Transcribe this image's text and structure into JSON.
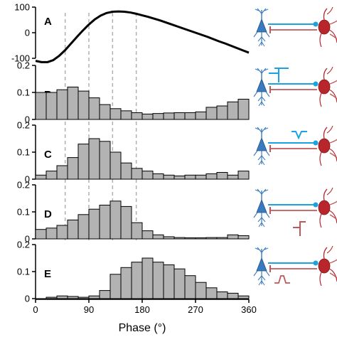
{
  "colors": {
    "bar_fill": "#b3b3b3",
    "bar_stroke": "#000000",
    "line": "#000000",
    "guide": "#b0b0b0",
    "pyramidal_cell": "#3a7abf",
    "interneuron": "#b8262b",
    "excitatory_projection": "#1aa3e0",
    "inhibitory_projection": "#c0575a"
  },
  "icons": [
    "pyramidal-neuron-icon",
    "interneuron-icon",
    "excitatory-synapse-icon",
    "inhibitory-synapse-icon",
    "current-step-icon"
  ],
  "xaxis": {
    "label": "Phase (°)",
    "ticks": [
      0,
      90,
      180,
      270,
      360
    ],
    "tick_labels": [
      "0",
      "90",
      "180",
      "270",
      "360"
    ],
    "range": [
      0,
      360
    ]
  },
  "guide_lines": [
    50,
    90,
    130,
    170
  ],
  "chart_data": [
    {
      "type": "line",
      "panel": "A",
      "ylim": [
        -100,
        100
      ],
      "yticks": [
        -100,
        0,
        100
      ],
      "ytick_labels": [
        "-100",
        "0",
        "100"
      ],
      "x": [
        0,
        10,
        20,
        30,
        40,
        50,
        60,
        70,
        80,
        90,
        100,
        110,
        120,
        130,
        140,
        150,
        160,
        170,
        180,
        190,
        200,
        210,
        220,
        230,
        240,
        250,
        260,
        270,
        280,
        290,
        300,
        310,
        320,
        330,
        340,
        350,
        360
      ],
      "y": [
        -110,
        -115,
        -115,
        -107,
        -90,
        -68,
        -42,
        -16,
        9,
        32,
        52,
        67,
        77,
        82,
        83,
        82,
        79,
        74,
        68,
        62,
        55,
        48,
        40,
        32,
        24,
        16,
        8,
        0,
        -8,
        -16,
        -25,
        -34,
        -42,
        -51,
        -60,
        -69,
        -78
      ]
    },
    {
      "type": "bar",
      "panel": "B",
      "ylim": [
        0,
        0.2
      ],
      "yticks": [
        0,
        0.1,
        0.2
      ],
      "ytick_labels": [
        "0",
        "0.1",
        "0.2"
      ],
      "bin_width": 18,
      "bin_starts": [
        0,
        18,
        36,
        54,
        72,
        90,
        108,
        126,
        144,
        162,
        180,
        198,
        216,
        234,
        252,
        270,
        288,
        306,
        324,
        342
      ],
      "values": [
        0.1,
        0.1,
        0.11,
        0.12,
        0.105,
        0.08,
        0.055,
        0.04,
        0.032,
        0.025,
        0.02,
        0.022,
        0.024,
        0.025,
        0.025,
        0.028,
        0.045,
        0.05,
        0.065,
        0.075
      ]
    },
    {
      "type": "bar",
      "panel": "C",
      "ylim": [
        0,
        0.2
      ],
      "yticks": [
        0,
        0.1,
        0.2
      ],
      "ytick_labels": [
        "0",
        "0.1",
        "0.2"
      ],
      "bin_width": 18,
      "bin_starts": [
        0,
        18,
        36,
        54,
        72,
        90,
        108,
        126,
        144,
        162,
        180,
        198,
        216,
        234,
        252,
        270,
        288,
        306,
        324,
        342
      ],
      "values": [
        0.015,
        0.03,
        0.05,
        0.08,
        0.13,
        0.15,
        0.14,
        0.1,
        0.06,
        0.04,
        0.03,
        0.02,
        0.015,
        0.012,
        0.015,
        0.015,
        0.02,
        0.025,
        0.015,
        0.03
      ]
    },
    {
      "type": "bar",
      "panel": "D",
      "ylim": [
        0,
        0.2
      ],
      "yticks": [
        0,
        0.1,
        0.2
      ],
      "ytick_labels": [
        "0",
        "0.1",
        "0.2"
      ],
      "bin_width": 18,
      "bin_starts": [
        0,
        18,
        36,
        54,
        72,
        90,
        108,
        126,
        144,
        162,
        180,
        198,
        216,
        234,
        252,
        270,
        288,
        306,
        324,
        342
      ],
      "values": [
        0.035,
        0.04,
        0.05,
        0.07,
        0.09,
        0.11,
        0.125,
        0.14,
        0.12,
        0.06,
        0.03,
        0.015,
        0.008,
        0.005,
        0.004,
        0.004,
        0.005,
        0.005,
        0.015,
        0.012
      ]
    },
    {
      "type": "bar",
      "panel": "E",
      "ylim": [
        0,
        0.2
      ],
      "yticks": [
        0,
        0.1,
        0.2
      ],
      "ytick_labels": [
        "0",
        "0.1",
        "0.2"
      ],
      "bin_width": 18,
      "bin_starts": [
        0,
        18,
        36,
        54,
        72,
        90,
        108,
        126,
        144,
        162,
        180,
        198,
        216,
        234,
        252,
        270,
        288,
        306,
        324,
        342
      ],
      "values": [
        0.0,
        0.005,
        0.01,
        0.008,
        0.005,
        0.01,
        0.03,
        0.09,
        0.115,
        0.135,
        0.15,
        0.135,
        0.125,
        0.11,
        0.085,
        0.06,
        0.04,
        0.025,
        0.02,
        0.01
      ]
    }
  ]
}
